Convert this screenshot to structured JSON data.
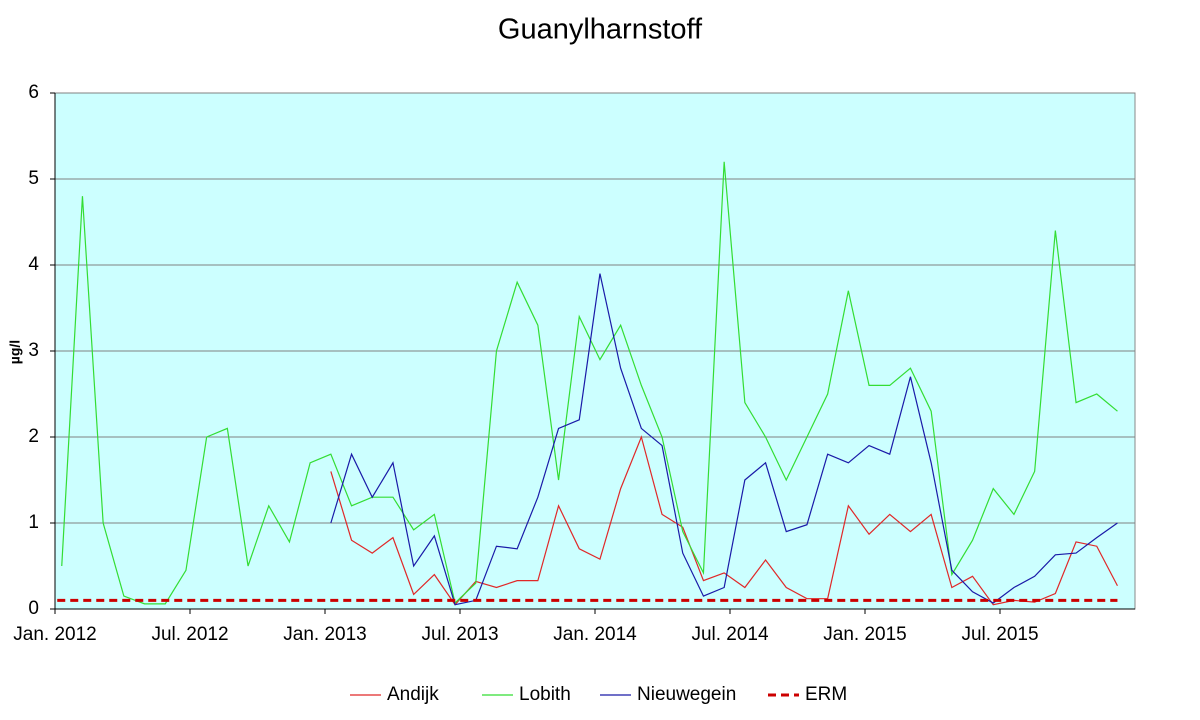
{
  "chart_data": {
    "type": "line",
    "title": "Guanylharnstoff",
    "y_label": "µg/l",
    "xlim": [
      0,
      48
    ],
    "xticks": [
      {
        "value": 0,
        "label": "Jan. 2012"
      },
      {
        "value": 6,
        "label": "Jul. 2012"
      },
      {
        "value": 12,
        "label": "Jan. 2013"
      },
      {
        "value": 18,
        "label": "Jul. 2013"
      },
      {
        "value": 24,
        "label": "Jan. 2014"
      },
      {
        "value": 30,
        "label": "Jul. 2014"
      },
      {
        "value": 36,
        "label": "Jan. 2015"
      },
      {
        "value": 42,
        "label": "Jul. 2015"
      }
    ],
    "ylim": [
      0,
      6
    ],
    "yticks": [
      0,
      1,
      2,
      3,
      4,
      5,
      6
    ],
    "grid": true,
    "background": "#ccffff",
    "legend": "bottom",
    "x": [
      0.3,
      1.22,
      2.14,
      3.06,
      3.98,
      4.9,
      5.82,
      6.74,
      7.66,
      8.58,
      9.5,
      10.42,
      11.34,
      12.26,
      13.18,
      14.1,
      15.02,
      15.94,
      16.86,
      17.78,
      18.7,
      19.62,
      20.54,
      21.46,
      22.38,
      23.3,
      24.22,
      25.14,
      26.06,
      26.98,
      27.9,
      28.82,
      29.74,
      30.66,
      31.58,
      32.5,
      33.42,
      34.34,
      35.26,
      36.18,
      37.1,
      38.02,
      38.94,
      39.86,
      40.78,
      41.7,
      42.62,
      43.54,
      44.46,
      45.38,
      46.3,
      47.22
    ],
    "series": [
      {
        "name": "Andijk",
        "color": "#e02828",
        "values": [
          null,
          null,
          null,
          null,
          null,
          null,
          null,
          null,
          null,
          null,
          null,
          null,
          null,
          1.6,
          0.8,
          0.65,
          0.83,
          0.17,
          0.4,
          0.05,
          0.32,
          0.25,
          0.33,
          0.33,
          1.2,
          0.7,
          0.58,
          1.4,
          2.0,
          1.1,
          0.95,
          0.33,
          0.42,
          0.25,
          0.57,
          0.25,
          0.12,
          0.12,
          1.2,
          0.87,
          1.1,
          0.9,
          1.1,
          0.25,
          0.38,
          0.05,
          0.1,
          0.08,
          0.18,
          0.78,
          0.73,
          0.27
        ]
      },
      {
        "name": "Lobith",
        "color": "#33dd33",
        "values": [
          0.5,
          4.8,
          1.0,
          0.15,
          0.06,
          0.06,
          0.45,
          2.0,
          2.1,
          0.5,
          1.2,
          0.78,
          1.7,
          1.8,
          1.2,
          1.3,
          1.3,
          0.92,
          1.1,
          0.07,
          0.3,
          3.0,
          3.8,
          3.3,
          1.5,
          3.4,
          2.9,
          3.3,
          2.6,
          2.0,
          0.9,
          0.42,
          5.2,
          2.4,
          2.0,
          1.5,
          2.0,
          2.5,
          3.7,
          2.6,
          2.6,
          2.8,
          2.3,
          0.4,
          0.8,
          1.4,
          1.1,
          1.6,
          4.4,
          2.4,
          2.5,
          2.3
        ]
      },
      {
        "name": "Nieuwegein",
        "color": "#1a1aa8",
        "values": [
          null,
          null,
          null,
          null,
          null,
          null,
          null,
          null,
          null,
          null,
          null,
          null,
          null,
          1.0,
          1.8,
          1.3,
          1.7,
          0.5,
          0.85,
          0.05,
          0.1,
          0.73,
          0.7,
          1.3,
          2.1,
          2.2,
          3.9,
          2.8,
          2.1,
          1.9,
          0.65,
          0.15,
          0.25,
          1.5,
          1.7,
          0.9,
          0.98,
          1.8,
          1.7,
          1.9,
          1.8,
          2.7,
          1.7,
          0.45,
          0.2,
          0.07,
          0.25,
          0.38,
          0.63,
          0.65,
          0.83,
          1.0
        ]
      },
      {
        "name": "ERM",
        "color": "#cc0000",
        "dashed": true,
        "x": [
          0.1,
          47.22
        ],
        "values": [
          0.1,
          0.1
        ]
      }
    ]
  }
}
